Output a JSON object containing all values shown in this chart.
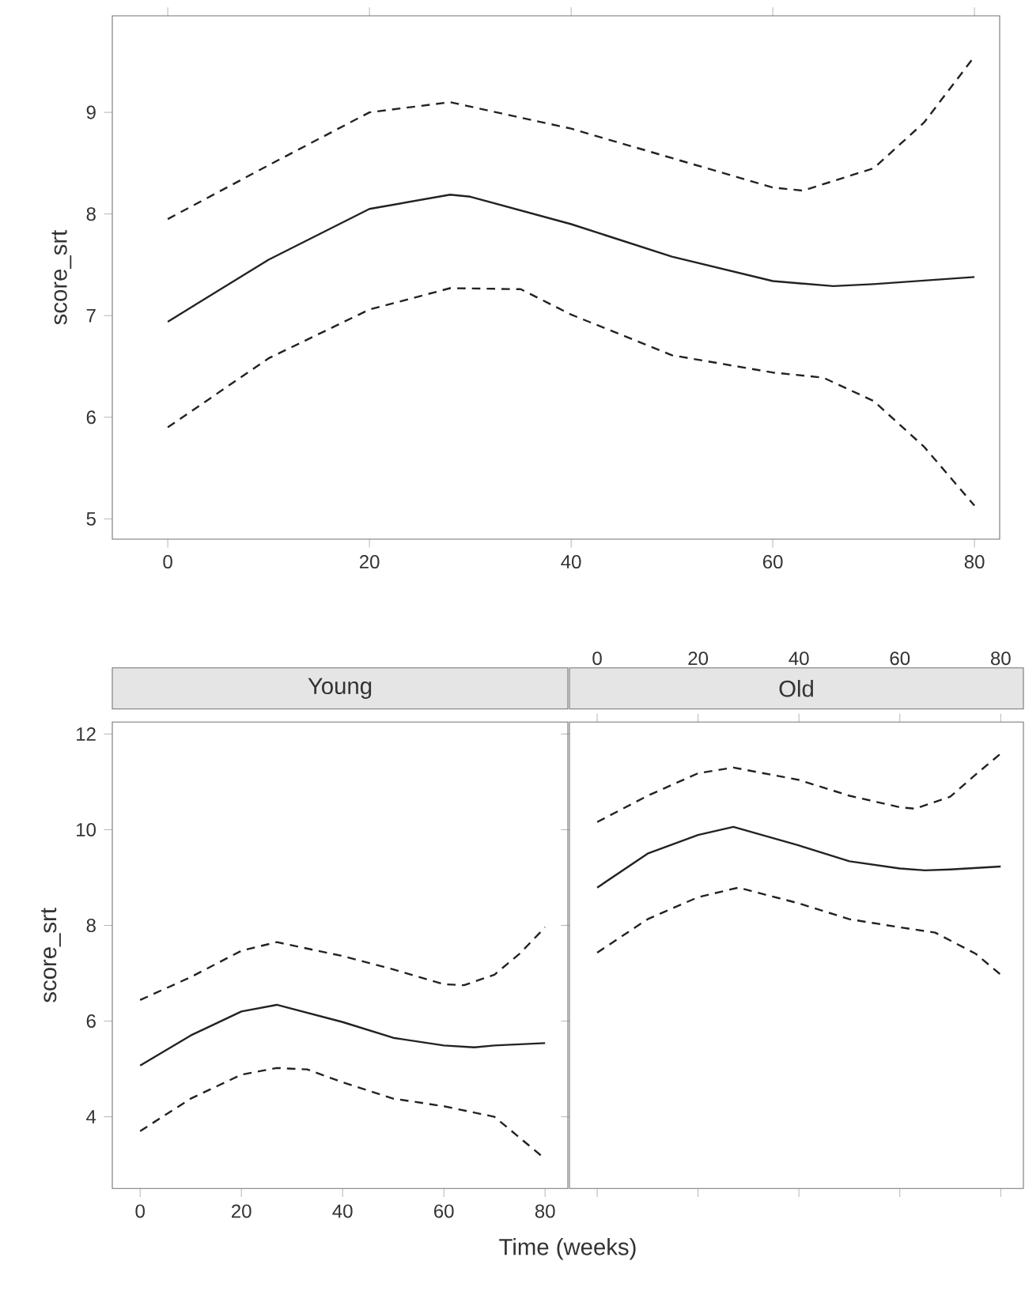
{
  "chart_data": [
    {
      "type": "line",
      "ylabel": "score_srt",
      "xlim": [
        -5.5,
        82.5
      ],
      "ylim": [
        4.8,
        9.95
      ],
      "xticks": [
        0,
        20,
        40,
        60,
        80
      ],
      "yticks": [
        5,
        6,
        7,
        8,
        9
      ],
      "series": [
        {
          "color": "#222222",
          "line_style": "solid",
          "x": [
            0,
            10,
            20,
            28,
            30,
            40,
            50,
            60,
            66,
            70,
            80
          ],
          "values": [
            6.94,
            7.55,
            8.05,
            8.19,
            8.17,
            7.9,
            7.58,
            7.34,
            7.29,
            7.31,
            7.38
          ]
        },
        {
          "color": "#222222",
          "line_style": "dashed",
          "x": [
            0,
            10,
            20,
            28,
            40,
            50,
            60,
            63,
            70,
            75,
            80
          ],
          "values": [
            7.95,
            8.48,
            9.0,
            9.1,
            8.84,
            8.55,
            8.26,
            8.23,
            8.45,
            8.9,
            9.55
          ]
        },
        {
          "color": "#222222",
          "line_style": "dashed",
          "x": [
            0,
            10,
            20,
            28,
            35,
            40,
            50,
            60,
            65,
            70,
            75,
            80
          ],
          "values": [
            5.9,
            6.58,
            7.06,
            7.27,
            7.26,
            7.01,
            6.61,
            6.44,
            6.39,
            6.16,
            5.71,
            5.13
          ]
        }
      ]
    },
    {
      "type": "line",
      "title": "Young",
      "xlabel": "Time (weeks)",
      "ylabel": "score_srt",
      "xlim": [
        -5.5,
        84.5
      ],
      "ylim": [
        2.5,
        12.25
      ],
      "xticks": [
        0,
        20,
        40,
        60,
        80
      ],
      "yticks": [
        4,
        6,
        8,
        10,
        12
      ],
      "series": [
        {
          "color": "#222222",
          "line_style": "solid",
          "x": [
            0,
            10,
            20,
            27,
            40,
            50,
            60,
            66,
            70,
            80
          ],
          "values": [
            5.07,
            5.7,
            6.2,
            6.34,
            5.98,
            5.65,
            5.49,
            5.45,
            5.49,
            5.54
          ]
        },
        {
          "color": "#222222",
          "line_style": "dashed",
          "x": [
            0,
            10,
            20,
            27,
            40,
            50,
            60,
            64,
            70,
            75,
            80
          ],
          "values": [
            6.44,
            6.92,
            7.47,
            7.65,
            7.36,
            7.08,
            6.77,
            6.75,
            6.97,
            7.41,
            7.96
          ]
        },
        {
          "color": "#222222",
          "line_style": "dashed",
          "x": [
            0,
            10,
            20,
            27,
            33,
            40,
            50,
            60,
            70,
            75,
            80
          ],
          "values": [
            3.7,
            4.38,
            4.88,
            5.02,
            4.99,
            4.72,
            4.38,
            4.22,
            4.0,
            3.56,
            3.12
          ]
        }
      ]
    },
    {
      "type": "line",
      "title": "Old",
      "ylim": [
        2.5,
        12.25
      ],
      "xlim": [
        -5.5,
        84.5
      ],
      "xticks": [
        0,
        20,
        40,
        60,
        80
      ],
      "yticks": [
        4,
        6,
        8,
        10,
        12
      ],
      "tick_labels": "x",
      "series": [
        {
          "color": "#222222",
          "line_style": "solid",
          "x": [
            0,
            10,
            20,
            27,
            40,
            50,
            60,
            65,
            70,
            80
          ],
          "values": [
            8.79,
            9.5,
            9.89,
            10.06,
            9.67,
            9.34,
            9.19,
            9.15,
            9.17,
            9.23
          ]
        },
        {
          "color": "#222222",
          "line_style": "dashed",
          "x": [
            0,
            10,
            20,
            27,
            40,
            50,
            60,
            63,
            70,
            75,
            80
          ],
          "values": [
            10.16,
            10.71,
            11.18,
            11.3,
            11.04,
            10.71,
            10.47,
            10.44,
            10.69,
            11.15,
            11.59
          ]
        },
        {
          "color": "#222222",
          "line_style": "dashed",
          "x": [
            0,
            10,
            20,
            28,
            40,
            50,
            60,
            67,
            75,
            80
          ],
          "values": [
            7.43,
            8.13,
            8.59,
            8.79,
            8.46,
            8.13,
            7.96,
            7.85,
            7.41,
            6.97
          ]
        }
      ]
    }
  ]
}
